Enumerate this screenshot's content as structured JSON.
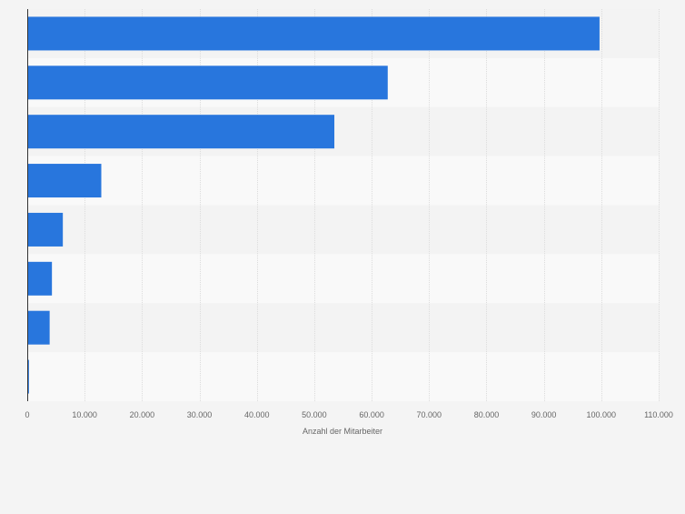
{
  "chart_data": {
    "type": "bar",
    "orientation": "horizontal",
    "categories": [
      "",
      "",
      "",
      "",
      "",
      "",
      "",
      ""
    ],
    "values": [
      99700,
      62800,
      53500,
      12900,
      6200,
      4300,
      3900,
      300
    ],
    "xlabel": "Anzahl der Mitarbeiter",
    "ylabel": "",
    "xlim": [
      0,
      110000
    ],
    "xticks": [
      0,
      10000,
      20000,
      30000,
      40000,
      50000,
      60000,
      70000,
      80000,
      90000,
      100000,
      110000
    ],
    "xtick_labels": [
      "0",
      "10.000",
      "20.000",
      "30.000",
      "40.000",
      "50.000",
      "60.000",
      "70.000",
      "80.000",
      "90.000",
      "100.000",
      "110.000"
    ],
    "grid": true,
    "colors": {
      "bar": "#2876dd",
      "background": "#f4f4f4",
      "band_light": "#f9f9f9",
      "band_dark": "#f3f3f3",
      "grid": "#dcdcdc",
      "axis": "#333333",
      "text": "#666666"
    }
  }
}
